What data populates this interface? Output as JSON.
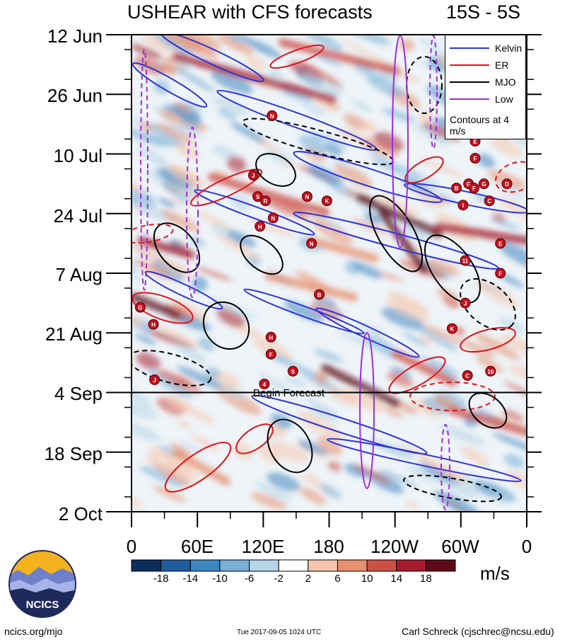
{
  "header": {
    "title": "USHEAR with CFS forecasts",
    "region": "15S - 5S"
  },
  "chart_data": {
    "type": "heatmap",
    "title": "USHEAR with CFS forecasts",
    "subtitle": "15S - 5S",
    "xlabel": "Longitude",
    "ylabel": "Date",
    "x_tick_labels": [
      "0",
      "60E",
      "120E",
      "180",
      "120W",
      "60W",
      "0"
    ],
    "x_ticks_deg": [
      0,
      60,
      120,
      180,
      240,
      300,
      360
    ],
    "y_tick_labels": [
      "12 Jun",
      "26 Jun",
      "10 Jul",
      "24 Jul",
      "7 Aug",
      "21 Aug",
      "4 Sep",
      "18 Sep",
      "2 Oct"
    ],
    "y_ticks_day": [
      0,
      14,
      28,
      42,
      56,
      70,
      84,
      98,
      112
    ],
    "forecast_start_day": 84,
    "forecast_label": "Begin Forecast",
    "colorbar": {
      "units": "m/s",
      "tick_labels": [
        "-18",
        "-14",
        "-10",
        "-6",
        "-2",
        "2",
        "6",
        "10",
        "14",
        "18"
      ],
      "colors": [
        "#0b2d5c",
        "#1f5d9d",
        "#3f85c0",
        "#79afd6",
        "#b6d5e8",
        "#ffffff",
        "#f5c6ad",
        "#e7906f",
        "#cd5046",
        "#a61c2e",
        "#5e0a1c"
      ]
    },
    "legend": {
      "items": [
        {
          "label": "Kelvin",
          "color": "#2d35d6"
        },
        {
          "label": "ER",
          "color": "#e0151d"
        },
        {
          "label": "MJO",
          "color": "#000000"
        },
        {
          "label": "Low",
          "color": "#9b30d9"
        }
      ],
      "note": "Contours at 4 m/s"
    },
    "storm_markers": [
      {
        "letter": "C",
        "lon": 339,
        "day": 7
      },
      {
        "letter": "D",
        "lon": 332,
        "day": 13
      },
      {
        "letter": "N",
        "lon": 128,
        "day": 19
      },
      {
        "letter": "E",
        "lon": 313,
        "day": 25
      },
      {
        "letter": "F",
        "lon": 313,
        "day": 29
      },
      {
        "letter": "J",
        "lon": 111,
        "day": 33
      },
      {
        "letter": "G",
        "lon": 307,
        "day": 35
      },
      {
        "letter": "D",
        "lon": 342,
        "day": 35
      },
      {
        "letter": "B",
        "lon": 296,
        "day": 36
      },
      {
        "letter": "F",
        "lon": 312,
        "day": 36
      },
      {
        "letter": "G",
        "lon": 321,
        "day": 35
      },
      {
        "letter": "S",
        "lon": 115,
        "day": 38
      },
      {
        "letter": "R",
        "lon": 122,
        "day": 39
      },
      {
        "letter": "N",
        "lon": 160,
        "day": 38
      },
      {
        "letter": "K",
        "lon": 178,
        "day": 39
      },
      {
        "letter": "C",
        "lon": 326,
        "day": 39
      },
      {
        "letter": "I",
        "lon": 302,
        "day": 40
      },
      {
        "letter": "N",
        "lon": 129,
        "day": 43
      },
      {
        "letter": "H",
        "lon": 117,
        "day": 45
      },
      {
        "letter": "N",
        "lon": 164,
        "day": 49
      },
      {
        "letter": "E",
        "lon": 336,
        "day": 49
      },
      {
        "letter": "11",
        "lon": 304,
        "day": 53
      },
      {
        "letter": "F",
        "lon": 336,
        "day": 56
      },
      {
        "letter": "B",
        "lon": 171,
        "day": 61
      },
      {
        "letter": "J",
        "lon": 304,
        "day": 63
      },
      {
        "letter": "G",
        "lon": 368,
        "day": 64
      },
      {
        "letter": "H",
        "lon": 380,
        "day": 68
      },
      {
        "letter": "K",
        "lon": 292,
        "day": 69
      },
      {
        "letter": "H",
        "lon": 127,
        "day": 71
      },
      {
        "letter": "F",
        "lon": 127,
        "day": 75
      },
      {
        "letter": "S",
        "lon": 147,
        "day": 79
      },
      {
        "letter": "C",
        "lon": 306,
        "day": 80
      },
      {
        "letter": "10",
        "lon": 327,
        "day": 79
      },
      {
        "letter": "J",
        "lon": 381,
        "day": 81
      },
      {
        "letter": "4",
        "lon": 121,
        "day": 82
      }
    ]
  },
  "footer": {
    "logo_text": "NCICS",
    "left": "ncics.org/mjo",
    "middle": "Tue 2017-09-05 1024 UTC",
    "right": "Carl Schreck (cjschrec@ncsu.edu)"
  }
}
